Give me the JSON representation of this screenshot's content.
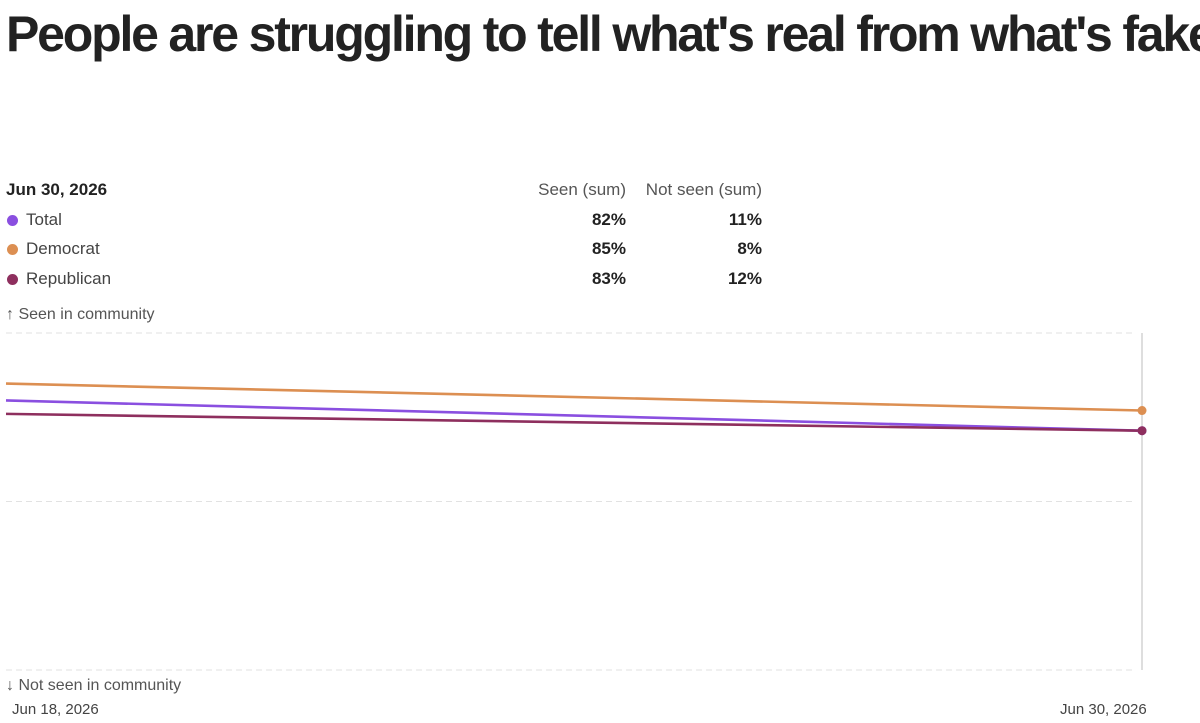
{
  "title": "People are struggling to tell what's real from what's fake",
  "legend": {
    "date": "Jun 30, 2026",
    "col1": "Seen (sum)",
    "col2": "Not seen (sum)",
    "rows": [
      {
        "name": "Total",
        "color": "#8a4fe0",
        "seen": "82%",
        "not_seen": "11%"
      },
      {
        "name": "Democrat",
        "color": "#dc8f52",
        "seen": "85%",
        "not_seen": "8%"
      },
      {
        "name": "Republican",
        "color": "#8e2f5e",
        "seen": "83%",
        "not_seen": "12%"
      }
    ]
  },
  "axis": {
    "top_label": "↑ Seen in community",
    "bottom_label": "↓ Not seen in community",
    "x_start": "Jun 18, 2026",
    "x_end": "Jun 30, 2026"
  },
  "chart_data": {
    "type": "line",
    "x": [
      "Jun 18, 2026",
      "Jun 30, 2026"
    ],
    "ylim": [
      0,
      100
    ],
    "grid": true,
    "series": [
      {
        "name": "Total",
        "color": "#8a4fe0",
        "values": [
          80,
          71
        ]
      },
      {
        "name": "Democrat",
        "color": "#dc8f52",
        "values": [
          85,
          77
        ]
      },
      {
        "name": "Republican",
        "color": "#8e2f5e",
        "values": [
          76,
          71
        ]
      }
    ]
  }
}
